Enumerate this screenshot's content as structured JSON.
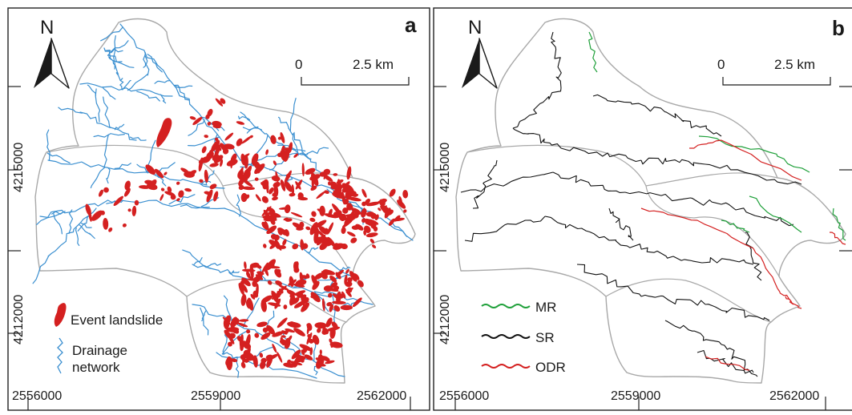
{
  "colors": {
    "landslide": "#d42020",
    "drainage": "#3a8fd0",
    "boundary": "#a8a8a8",
    "mr": "#1fa03a",
    "sr": "#111111",
    "odr": "#d42020",
    "frame": "#222222"
  },
  "icons": [
    "north-arrow-icon",
    "landslide-legend-icon",
    "drainage-legend-icon",
    "route-legend-icon"
  ],
  "panels": [
    {
      "letter": "a",
      "north": "N",
      "scale": {
        "start": "0",
        "end": "2.5 km"
      },
      "x_ticks": [
        "2556000",
        "2559000",
        "2562000"
      ],
      "y_ticks": [
        "4215000",
        "4212000"
      ],
      "legend": {
        "landslide": "Event landslide",
        "drainage_line1": "Drainage",
        "drainage_line2": "network"
      }
    },
    {
      "letter": "b",
      "north": "N",
      "scale": {
        "start": "0",
        "end": "2.5 km"
      },
      "x_ticks": [
        "2556000",
        "2559000",
        "2562000"
      ],
      "y_ticks": [
        "4215000",
        "4212000"
      ],
      "legend": {
        "mr": "MR",
        "sr": "SR",
        "odr": "ODR"
      }
    }
  ]
}
